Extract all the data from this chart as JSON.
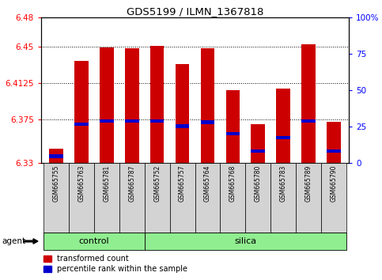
{
  "title": "GDS5199 / ILMN_1367818",
  "samples": [
    "GSM665755",
    "GSM665763",
    "GSM665781",
    "GSM665787",
    "GSM665752",
    "GSM665757",
    "GSM665764",
    "GSM665768",
    "GSM665780",
    "GSM665783",
    "GSM665789",
    "GSM665790"
  ],
  "transformed_count": [
    6.345,
    6.435,
    6.449,
    6.448,
    6.451,
    6.432,
    6.448,
    6.405,
    6.37,
    6.407,
    6.452,
    6.372
  ],
  "percentile_rank": [
    6.337,
    6.37,
    6.373,
    6.373,
    6.373,
    6.368,
    6.372,
    6.36,
    6.342,
    6.356,
    6.373,
    6.342
  ],
  "ymin": 6.33,
  "ymax": 6.48,
  "yticks": [
    6.33,
    6.375,
    6.4125,
    6.45,
    6.48
  ],
  "ytick_labels": [
    "6.33",
    "6.375",
    "6.4125",
    "6.45",
    "6.48"
  ],
  "right_yticks_pct": [
    0,
    25,
    50,
    75,
    100
  ],
  "right_ytick_labels": [
    "0",
    "25",
    "50",
    "75",
    "100%"
  ],
  "grid_lines": [
    6.375,
    6.4125,
    6.45
  ],
  "bar_color": "#cc0000",
  "blue_color": "#0000cc",
  "bg_color": "#ffffff",
  "sample_box_color": "#d3d3d3",
  "group_color": "#90ee90",
  "n_control": 4,
  "control_label": "control",
  "silica_label": "silica",
  "agent_label": "agent",
  "legend_red_label": "transformed count",
  "legend_blue_label": "percentile rank within the sample",
  "bar_width": 0.55
}
